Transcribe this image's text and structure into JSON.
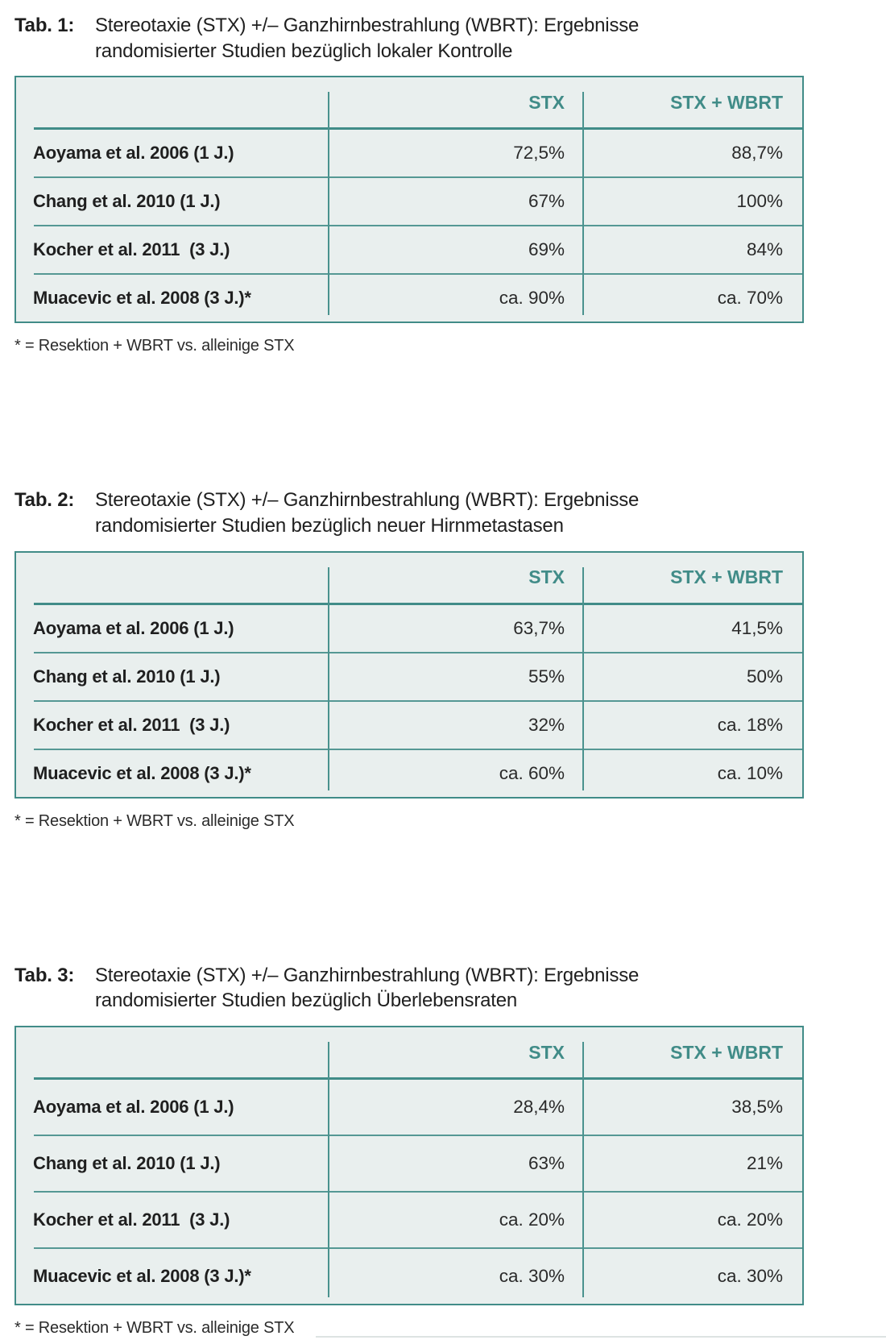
{
  "colors": {
    "accent_teal": "#418C88",
    "table_fill": "#E9EFEE",
    "row_separator": "#559894",
    "text": "#1F1F1F"
  },
  "tables": [
    {
      "label": "Tab. 1:",
      "title_line1": "Stereotaxie (STX) +/– Ganzhirnbestrahlung (WBRT): Ergebnisse",
      "title_line2": "randomisierter Studien bezüglich lokaler Kontrolle",
      "columns": [
        "STX",
        "STX + WBRT"
      ],
      "rows": [
        {
          "study": "Aoyama et al. 2006 (1 J.)",
          "stx": "72,5%",
          "stx_wbrt": "88,7%"
        },
        {
          "study": "Chang et al. 2010 (1 J.)",
          "stx": "67%",
          "stx_wbrt": "100%"
        },
        {
          "study": "Kocher et al. 2011  (3 J.)",
          "stx": "69%",
          "stx_wbrt": "84%"
        },
        {
          "study": "Muacevic et al. 2008 (3 J.)*",
          "stx": "ca. 90%",
          "stx_wbrt": "ca. 70%"
        }
      ],
      "footnote": "* = Resektion + WBRT vs. alleinige STX"
    },
    {
      "label": "Tab. 2:",
      "title_line1": "Stereotaxie (STX) +/– Ganzhirnbestrahlung (WBRT): Ergebnisse",
      "title_line2": "randomisierter Studien bezüglich neuer Hirnmetastasen",
      "columns": [
        "STX",
        "STX + WBRT"
      ],
      "rows": [
        {
          "study": "Aoyama et al. 2006 (1 J.)",
          "stx": "63,7%",
          "stx_wbrt": "41,5%"
        },
        {
          "study": "Chang et al. 2010 (1 J.)",
          "stx": "55%",
          "stx_wbrt": "50%"
        },
        {
          "study": "Kocher et al. 2011  (3 J.)",
          "stx": "32%",
          "stx_wbrt": "ca. 18%"
        },
        {
          "study": "Muacevic et al. 2008 (3 J.)*",
          "stx": "ca. 60%",
          "stx_wbrt": "ca. 10%"
        }
      ],
      "footnote": "* = Resektion + WBRT vs. alleinige STX"
    },
    {
      "label": "Tab. 3:",
      "title_line1": "Stereotaxie (STX) +/– Ganzhirnbestrahlung (WBRT): Ergebnisse",
      "title_line2": "randomisierter Studien bezüglich Überlebensraten",
      "columns": [
        "STX",
        "STX + WBRT"
      ],
      "rows": [
        {
          "study": "Aoyama et al. 2006 (1 J.)",
          "stx": "28,4%",
          "stx_wbrt": "38,5%"
        },
        {
          "study": "Chang et al. 2010 (1 J.)",
          "stx": "63%",
          "stx_wbrt": "21%"
        },
        {
          "study": "Kocher et al. 2011  (3 J.)",
          "stx": "ca. 20%",
          "stx_wbrt": "ca. 20%"
        },
        {
          "study": "Muacevic et al. 2008 (3 J.)*",
          "stx": "ca. 30%",
          "stx_wbrt": "ca. 30%"
        }
      ],
      "footnote": "* = Resektion + WBRT vs. alleinige STX"
    }
  ]
}
